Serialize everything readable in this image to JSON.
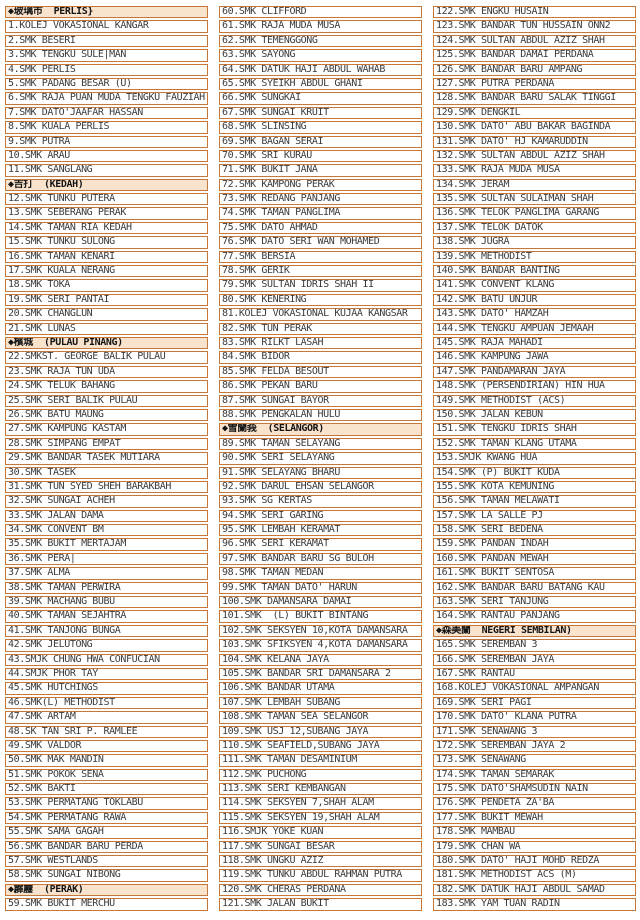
{
  "colors": {
    "border": "#c8773a",
    "header_bg": "#fae3cd",
    "item_text": "#3b3b3b",
    "header_text": "#141414",
    "page_bg": "#ffffff"
  },
  "icons": {
    "section_marker": "diamond-icon"
  },
  "columns": [
    {
      "rows": [
        {
          "type": "header",
          "text": "◆玻璃市  PERLIS}"
        },
        {
          "type": "item",
          "text": "1.KOLEJ VOKASIONAL KANGAR"
        },
        {
          "type": "item",
          "text": "2.SMK BESERI"
        },
        {
          "type": "item",
          "text": "3.SMK TENGKU SULE|MAN"
        },
        {
          "type": "item",
          "text": "4.SMK PERLIS"
        },
        {
          "type": "item",
          "text": "5.SMK PADANG BESAR (U)"
        },
        {
          "type": "item",
          "text": "6.SMK RAJA PUAN MUDA TENGKU FAUZIAH"
        },
        {
          "type": "item",
          "text": "7.SMK DATO'JAAFAR HASSAN"
        },
        {
          "type": "item",
          "text": "8.SMK KUALA PERLIS"
        },
        {
          "type": "item",
          "text": "9.SMK PUTRA"
        },
        {
          "type": "item",
          "text": "10.SMK ARAU"
        },
        {
          "type": "item",
          "text": "11.SMK SANGLANG"
        },
        {
          "type": "header",
          "text": "◆吉打  (KEDAH)"
        },
        {
          "type": "item",
          "text": "12.SMK TUNKU PUTERA"
        },
        {
          "type": "item",
          "text": "13.SMK SEBERANG PERAK"
        },
        {
          "type": "item",
          "text": "14.SMK TAMAN RIA KEDAH"
        },
        {
          "type": "item",
          "text": "15.SMK TUNKU SULONG"
        },
        {
          "type": "item",
          "text": "16.SMK TAMAN KENARI"
        },
        {
          "type": "item",
          "text": "17.SMK KUALA NERANG"
        },
        {
          "type": "item",
          "text": "18.SMK TOKA"
        },
        {
          "type": "item",
          "text": "19.SMK SERI PANTAI"
        },
        {
          "type": "item",
          "text": "20.SMK CHANGLUN"
        },
        {
          "type": "item",
          "text": "21.SMK LUNAS"
        },
        {
          "type": "header",
          "text": "◆檳城  (PULAU PINANG)"
        },
        {
          "type": "item",
          "text": "22.SMKST. GEORGE BALIK PULAU"
        },
        {
          "type": "item",
          "text": "23.SMK RAJA TUN UDA"
        },
        {
          "type": "item",
          "text": "24.SMK TELUK BAHANG"
        },
        {
          "type": "item",
          "text": "25.SMK SERI BALIK PULAU"
        },
        {
          "type": "item",
          "text": "26.SMK BATU MAUNG"
        },
        {
          "type": "item",
          "text": "27.SMK KAMPUNG KASTAM"
        },
        {
          "type": "item",
          "text": "28.SMK SIMPANG EMPAT"
        },
        {
          "type": "item",
          "text": "29.SMK BANDAR TASEK MUTIARA"
        },
        {
          "type": "item",
          "text": "30.SMK TASEK"
        },
        {
          "type": "item",
          "text": "31.SMK TUN SYED SHEH BARAKBAH"
        },
        {
          "type": "item",
          "text": "32.SMK SUNGAI ACHEH"
        },
        {
          "type": "item",
          "text": "33.SMK JALAN DAMA"
        },
        {
          "type": "item",
          "text": "34.SMK CONVENT BM"
        },
        {
          "type": "item",
          "text": "35.SMK BUKIT MERTAJAM"
        },
        {
          "type": "item",
          "text": "36.SMK PERA|"
        },
        {
          "type": "item",
          "text": "37.SMK ALMA"
        },
        {
          "type": "item",
          "text": "38.SMK TAMAN PERWIRA"
        },
        {
          "type": "item",
          "text": "39.SMK MACHANG BUBU"
        },
        {
          "type": "item",
          "text": "40.SMK TAMAN SEJAHTRA"
        },
        {
          "type": "item",
          "text": "41.SMK TANJONG BUNGA"
        },
        {
          "type": "item",
          "text": "42.SMK JELUTONG"
        },
        {
          "type": "item",
          "text": "43.SMJK CHUNG HWA CONFUCIAN"
        },
        {
          "type": "item",
          "text": "44.SMJK PHOR TAY"
        },
        {
          "type": "item",
          "text": "45.SMK HUTCHINGS"
        },
        {
          "type": "item",
          "text": "46.SMK(L) METHODIST"
        },
        {
          "type": "item",
          "text": "47.SMK ARTAM"
        },
        {
          "type": "item",
          "text": "48.SK TAN SRI P. RAMLEE"
        },
        {
          "type": "item",
          "text": "49.SMK VALDOR"
        },
        {
          "type": "item",
          "text": "50.SMK MAK MANDIN"
        },
        {
          "type": "item",
          "text": "51.SMK POKOK SENA"
        },
        {
          "type": "item",
          "text": "52.SMK BAKTI"
        },
        {
          "type": "item",
          "text": "53.SMK PERMATANG TOKLABU"
        },
        {
          "type": "item",
          "text": "54.SMK PERMATANG RAWA"
        },
        {
          "type": "item",
          "text": "55.SMK SAMA GAGAH"
        },
        {
          "type": "item",
          "text": "56.SMK BANDAR BARU PERDA"
        },
        {
          "type": "item",
          "text": "57.SMK WESTLANDS"
        },
        {
          "type": "item",
          "text": "58.SMK SUNGAI NIBONG"
        },
        {
          "type": "header",
          "text": "◆霹靂  (PERAK)"
        },
        {
          "type": "item",
          "text": "59.SMK BUKIT MERCHU"
        }
      ]
    },
    {
      "rows": [
        {
          "type": "item",
          "text": "60.SMK CLIFFORD"
        },
        {
          "type": "item",
          "text": "61.SMK RAJA MUDA MUSA"
        },
        {
          "type": "item",
          "text": "62.SMK TEMENGGONG"
        },
        {
          "type": "item",
          "text": "63.SMK SAYONG"
        },
        {
          "type": "item",
          "text": "64.SMK DATUK HAJI ABDUL WAHAB"
        },
        {
          "type": "item",
          "text": "65.SMK SYEIKH ABDUL GHANI"
        },
        {
          "type": "item",
          "text": "66.SMK SUNGKAI"
        },
        {
          "type": "item",
          "text": "67.SMK SUNGAI KRUIT"
        },
        {
          "type": "item",
          "text": "68.SMK SLINSING"
        },
        {
          "type": "item",
          "text": "69.SMK BAGAN SERAI"
        },
        {
          "type": "item",
          "text": "70.SMK SRI KURAU"
        },
        {
          "type": "item",
          "text": "71.SMK BUKIT JANA"
        },
        {
          "type": "item",
          "text": "72.SMK KAMPONG PERAK"
        },
        {
          "type": "item",
          "text": "73.SMK REDANG PANJANG"
        },
        {
          "type": "item",
          "text": "74.SMK TAMAN PANGLIMA"
        },
        {
          "type": "item",
          "text": "75.SMK DATO AHMAD"
        },
        {
          "type": "item",
          "text": "76.SMK DATO SERI WAN MOHAMED"
        },
        {
          "type": "item",
          "text": "77.SMK BERSIA"
        },
        {
          "type": "item",
          "text": "78.SMK GERIK"
        },
        {
          "type": "item",
          "text": "79.SMK SULTAN IDRIS SHAH II"
        },
        {
          "type": "item",
          "text": "80.SMK KENERING"
        },
        {
          "type": "item",
          "text": "81.KOLEJ VOKASIONAL KUJAA KANGSAR"
        },
        {
          "type": "item",
          "text": "82.SMK TUN PERAK"
        },
        {
          "type": "item",
          "text": "83.SMK RILKT LASAH"
        },
        {
          "type": "item",
          "text": "84.SMK BIDOR"
        },
        {
          "type": "item",
          "text": "85.SMK FELDA BESOUT"
        },
        {
          "type": "item",
          "text": "86.SMK PEKAN BARU"
        },
        {
          "type": "item",
          "text": "87.SMK SUNGAI BAYOR"
        },
        {
          "type": "item",
          "text": "88.SMK PENGKALAN HULU"
        },
        {
          "type": "header",
          "text": "◆雪蘭莪  (SELANGOR)"
        },
        {
          "type": "item",
          "text": "89.SMK TAMAN SELAYANG"
        },
        {
          "type": "item",
          "text": "90.SMK SERI SELAYANG"
        },
        {
          "type": "item",
          "text": "91.SMK SELAYANG BHARU"
        },
        {
          "type": "item",
          "text": "92.SMK DARUL EHSAN SELANGOR"
        },
        {
          "type": "item",
          "text": "93.SMK SG KERTAS"
        },
        {
          "type": "item",
          "text": "94.SMK SERI GARING"
        },
        {
          "type": "item",
          "text": "95.SMK LEMBAH KERAMAT"
        },
        {
          "type": "item",
          "text": "96.SMK SERI KERAMAT"
        },
        {
          "type": "item",
          "text": "97.SMK BANDAR BARU SG BULOH"
        },
        {
          "type": "item",
          "text": "98.SMK TAMAN MEDAN"
        },
        {
          "type": "item",
          "text": "99.SMK TAMAN DATO' HARUN"
        },
        {
          "type": "item",
          "text": "100.SMK DAMANSARA DAMAI"
        },
        {
          "type": "item",
          "text": "101.SMK  (L) BUKIT BINTANG"
        },
        {
          "type": "item",
          "text": "102.SMK SEKSYEN 10,KOTA DAMANSARA"
        },
        {
          "type": "item",
          "text": "103.SMK SFIKSYEN 4,KOTA DAMANSARA"
        },
        {
          "type": "item",
          "text": "104.SMK KELANA JAYA"
        },
        {
          "type": "item",
          "text": "105.SMK BANDAR SRI DAMANSARA 2"
        },
        {
          "type": "item",
          "text": "106.SMK BANDAR UTAMA"
        },
        {
          "type": "item",
          "text": "107.SMK LEMBAH SUBANG"
        },
        {
          "type": "item",
          "text": "108.SMK TAMAN SEA SELANGOR"
        },
        {
          "type": "item",
          "text": "109.SMK USJ 12,SUBANG JAYA"
        },
        {
          "type": "item",
          "text": "110.SMK SEAFIELD,SUBANG JAYA"
        },
        {
          "type": "item",
          "text": "111.SMK TAMAN DESAMINIUM"
        },
        {
          "type": "item",
          "text": "112.SMK PUCHONG"
        },
        {
          "type": "item",
          "text": "113.SMK SERI KEMBANGAN"
        },
        {
          "type": "item",
          "text": "114.SMK SEKSYEN 7,SHAH ALAM"
        },
        {
          "type": "item",
          "text": "115.SMK SEKSYEN 19,SHAH ALAM"
        },
        {
          "type": "item",
          "text": "116.SMJK YOKE KUAN"
        },
        {
          "type": "item",
          "text": "117.SMK SUNGAI BESAR"
        },
        {
          "type": "item",
          "text": "118.SMK UNGKU AZIZ"
        },
        {
          "type": "item",
          "text": "119.SMK TUNKU ABDUL RAHMAN PUTRA"
        },
        {
          "type": "item",
          "text": "120.SMK CHERAS PERDANA"
        },
        {
          "type": "item",
          "text": "121.SMK JALAN BUKIT"
        }
      ]
    },
    {
      "rows": [
        {
          "type": "item",
          "text": "122.SMK ENGKU HUSAIN"
        },
        {
          "type": "item",
          "text": "123.SMK BANDAR TUN HUSSAIN ONN2"
        },
        {
          "type": "item",
          "text": "124.SMK SULTAN ABDUL AZIZ SHAH"
        },
        {
          "type": "item",
          "text": "125.SMK BANDAR DAMAI PERDANA"
        },
        {
          "type": "item",
          "text": "126.SMK BANDAR BARU AMPANG"
        },
        {
          "type": "item",
          "text": "127.SMK PUTRA PERDANA"
        },
        {
          "type": "item",
          "text": "128.SMK BANDAR BARU SALAK TINGGI"
        },
        {
          "type": "item",
          "text": "129.SMK DENGKIL"
        },
        {
          "type": "item",
          "text": "130.SMK DATO' ABU BAKAR BAGINDA"
        },
        {
          "type": "item",
          "text": "131.SMK DATO' HJ KAMARUDDIN"
        },
        {
          "type": "item",
          "text": "132.SMK SULTAN ABDUL AZIZ SHAH"
        },
        {
          "type": "item",
          "text": "133.SMK RAJA MUDA MUSA"
        },
        {
          "type": "item",
          "text": "134.SMK JERAM"
        },
        {
          "type": "item",
          "text": "135.SMK SULTAN SULAIMAN SHAH"
        },
        {
          "type": "item",
          "text": "136.SMK TELOK PANGLIMA GARANG"
        },
        {
          "type": "item",
          "text": "137.SMK TELOK DATOK"
        },
        {
          "type": "item",
          "text": "138.SMK JUGRA"
        },
        {
          "type": "item",
          "text": "139.SMK METHODIST"
        },
        {
          "type": "item",
          "text": "140.SMK BANDAR BANTING"
        },
        {
          "type": "item",
          "text": "141.SMK CONVENT KLANG"
        },
        {
          "type": "item",
          "text": "142.SMK BATU UNJUR"
        },
        {
          "type": "item",
          "text": "143.SMK DATO' HAMZAH"
        },
        {
          "type": "item",
          "text": "144.SMK TENGKU AMPUAN JEMAAH"
        },
        {
          "type": "item",
          "text": "145.SMK RAJA MAHADI"
        },
        {
          "type": "item",
          "text": "146.SMK KAMPUNG JAWA"
        },
        {
          "type": "item",
          "text": "147.SMK PANDAMARAN JAYA"
        },
        {
          "type": "item",
          "text": "148.SMK (PERSENDIRIAN) HIN HUA"
        },
        {
          "type": "item",
          "text": "149.SMK METHODIST (ACS)"
        },
        {
          "type": "item",
          "text": "150.SMK JALAN KEBUN"
        },
        {
          "type": "item",
          "text": "151.SMK TENGKU IDRIS SHAH"
        },
        {
          "type": "item",
          "text": "152.SMK TAMAN KLANG UTAMA"
        },
        {
          "type": "item",
          "text": "153.SMJK KWANG HUA"
        },
        {
          "type": "item",
          "text": "154.SMK (P) BUKIT KUDA"
        },
        {
          "type": "item",
          "text": "155.SMK KOTA KEMUNING"
        },
        {
          "type": "item",
          "text": "156.SMK TAMAN MELAWATI"
        },
        {
          "type": "item",
          "text": "157.SMK LA SALLE PJ"
        },
        {
          "type": "item",
          "text": "158.SMK SERI BEDENA"
        },
        {
          "type": "item",
          "text": "159.SMK PANDAN INDAH"
        },
        {
          "type": "item",
          "text": "160.SMK PANDAN MEWAH"
        },
        {
          "type": "item",
          "text": "161.SMK BUKIT SENTOSA"
        },
        {
          "type": "item",
          "text": "162.SMK BANDAR BARU BATANG KAU"
        },
        {
          "type": "item",
          "text": "163.SMK SERI TANJUNG"
        },
        {
          "type": "item",
          "text": "164.SMK RANTAU PANJANG"
        },
        {
          "type": "header",
          "text": "◆森美蘭  NEGERI SEMBILAN)"
        },
        {
          "type": "item",
          "text": "165.SMK SEREMBAN 3"
        },
        {
          "type": "item",
          "text": "166.SMK SEREMBAN JAYA"
        },
        {
          "type": "item",
          "text": "167.SMK RANTAU"
        },
        {
          "type": "item",
          "text": "168.KOLEJ VOKASIONAL AMPANGAN"
        },
        {
          "type": "item",
          "text": "169.SMK SERI PAGI"
        },
        {
          "type": "item",
          "text": "170.SMK DATO' KLANA PUTRA"
        },
        {
          "type": "item",
          "text": "171.SMK SENAWANG 3"
        },
        {
          "type": "item",
          "text": "172.SMK SEREMBAN JAYA 2"
        },
        {
          "type": "item",
          "text": "173.SMK SENAWANG"
        },
        {
          "type": "item",
          "text": "174.SMK TAMAN SEMARAK"
        },
        {
          "type": "item",
          "text": "175.SMK DATO'SHAMSUDIN NAIN"
        },
        {
          "type": "item",
          "text": "176.SMK PENDETA ZA'BA"
        },
        {
          "type": "item",
          "text": "177.SMK BUKIT MEWAH"
        },
        {
          "type": "item",
          "text": "178.SMK MAMBAU"
        },
        {
          "type": "item",
          "text": "179.SMK CHAN WA"
        },
        {
          "type": "item",
          "text": "180.SMK DATO' HAJI MOHD REDZA"
        },
        {
          "type": "item",
          "text": "181.SMK METHODIST ACS (M)"
        },
        {
          "type": "item",
          "text": "182.SMK DATUK HAJI ABDUL SAMAD"
        },
        {
          "type": "item",
          "text": "183.SMK YAM TUAN RADIN"
        }
      ]
    }
  ]
}
